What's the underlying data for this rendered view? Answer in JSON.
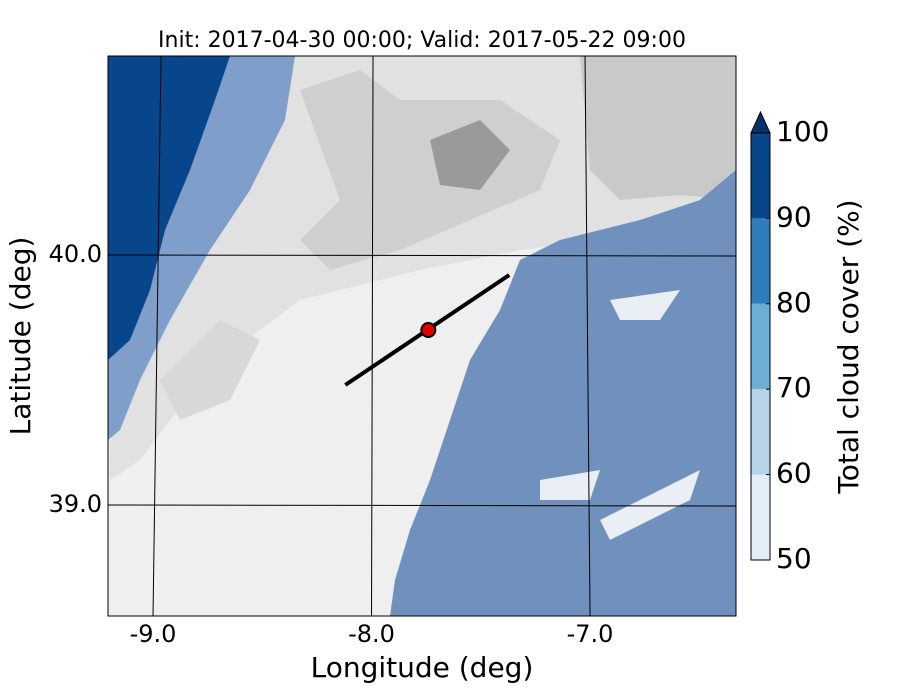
{
  "chart_data": {
    "type": "contour",
    "title": "Init: 2017-04-30 00:00; Valid: 2017-05-22 09:00",
    "xlabel": "Longitude (deg)",
    "ylabel": "Latitude (deg)",
    "xlim": [
      -9.206,
      -6.332
    ],
    "ylim": [
      38.556,
      40.796
    ],
    "xticks": [
      {
        "value": -9,
        "label": "-9.0"
      },
      {
        "value": -8,
        "label": "-8.0"
      },
      {
        "value": -7,
        "label": "-7.0"
      }
    ],
    "yticks": [
      {
        "value": 39,
        "label": "39.0"
      },
      {
        "value": 40,
        "label": "40.0"
      }
    ],
    "grid": true,
    "cross_section": {
      "lon": [
        -8.12,
        -7.37
      ],
      "lat": [
        39.48,
        39.92
      ],
      "color": "#000000"
    },
    "point": {
      "lon": -7.74,
      "lat": 39.7,
      "color": "#e00000"
    },
    "colorbar": {
      "label": "Total cloud cover (%)",
      "clim": [
        50,
        100
      ],
      "ticks": [
        50,
        60,
        70,
        80,
        90,
        100
      ],
      "colors": [
        "#e3eef8",
        "#b6d3ea",
        "#6caed6",
        "#2f7dbb",
        "#08468c"
      ],
      "over_color": "#08306b",
      "extend": "max"
    }
  }
}
